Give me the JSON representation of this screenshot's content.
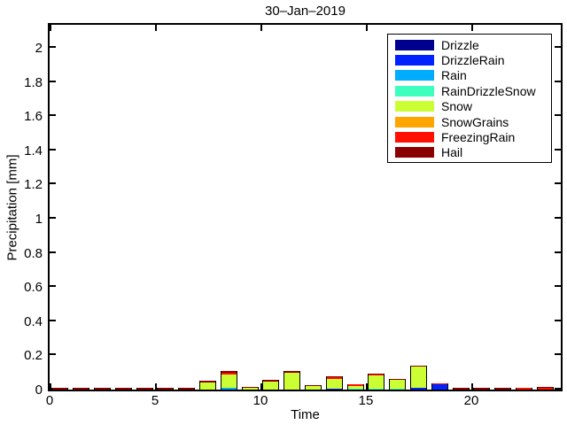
{
  "chart_data": {
    "type": "bar",
    "stacked": true,
    "title": "30–Jan–2019",
    "xlabel": "Time",
    "ylabel": "Precipitation [mm]",
    "xlim": [
      0,
      24.24
    ],
    "ylim": [
      0,
      2.135
    ],
    "x_ticks": [
      0,
      5,
      10,
      15,
      20
    ],
    "y_ticks": [
      0,
      0.2,
      0.4,
      0.6,
      0.8,
      1,
      1.2,
      1.4,
      1.6,
      1.8,
      2
    ],
    "grid": false,
    "legend_position": "upper-right-inside",
    "axis_color": "#000000",
    "background_color": "#ffffff",
    "hours": [
      0,
      1,
      2,
      3,
      4,
      5,
      6,
      7,
      8,
      9,
      10,
      11,
      12,
      13,
      14,
      15,
      16,
      17,
      18,
      19,
      20,
      21,
      22,
      23
    ],
    "bar_center_offset": 0.5,
    "bar_width": 0.8,
    "series": [
      {
        "name": "Drizzle",
        "color": "#00008F",
        "values": [
          0,
          0,
          0,
          0,
          0,
          0,
          0,
          0,
          0,
          0,
          0,
          0,
          0,
          0,
          0,
          0,
          0,
          0,
          0,
          0,
          0,
          0,
          0,
          0
        ]
      },
      {
        "name": "DrizzleRain",
        "color": "#0022FF",
        "values": [
          0,
          0,
          0,
          0,
          0,
          0,
          0,
          0,
          0,
          0,
          0,
          0,
          0,
          0.005,
          0,
          0,
          0,
          0.012,
          0.03,
          0,
          0,
          0,
          0,
          0
        ]
      },
      {
        "name": "Rain",
        "color": "#00ACFF",
        "values": [
          0,
          0,
          0,
          0,
          0,
          0,
          0,
          0,
          0.008,
          0,
          0,
          0,
          0,
          0,
          0,
          0,
          0,
          0,
          0,
          0,
          0,
          0,
          0,
          0
        ]
      },
      {
        "name": "RainDrizzleSnow",
        "color": "#3DFFBE",
        "values": [
          0,
          0,
          0,
          0,
          0,
          0,
          0,
          0,
          0,
          0,
          0,
          0,
          0,
          0,
          0.005,
          0.005,
          0.005,
          0,
          0,
          0,
          0,
          0,
          0,
          0
        ]
      },
      {
        "name": "Snow",
        "color": "#CCFF33",
        "values": [
          0,
          0,
          0,
          0,
          0,
          0,
          0,
          0.04,
          0.08,
          0.012,
          0.045,
          0.1,
          0.02,
          0.055,
          0.015,
          0.08,
          0.05,
          0.125,
          0,
          0,
          0,
          0,
          0,
          0
        ]
      },
      {
        "name": "SnowGrains",
        "color": "#FFA500",
        "values": [
          0,
          0,
          0,
          0,
          0,
          0,
          0,
          0,
          0,
          0,
          0,
          0,
          0,
          0,
          0,
          0,
          0,
          0,
          0,
          0,
          0,
          0,
          0,
          0
        ]
      },
      {
        "name": "FreezingRain",
        "color": "#FF1000",
        "values": [
          0,
          0,
          0,
          0,
          0,
          0,
          0,
          0,
          0.01,
          0,
          0,
          0,
          0,
          0.008,
          0.012,
          0.007,
          0,
          0,
          0.006,
          0,
          0,
          0,
          0.012,
          0.01
        ]
      },
      {
        "name": "Hail",
        "color": "#8B0000",
        "values": [
          0.008,
          0.008,
          0.008,
          0.008,
          0.008,
          0.008,
          0.008,
          0.008,
          0.008,
          0.005,
          0.008,
          0.01,
          0.006,
          0.005,
          0,
          0.007,
          0.007,
          0.006,
          0,
          0.008,
          0.008,
          0.008,
          0,
          0.004
        ]
      }
    ]
  }
}
